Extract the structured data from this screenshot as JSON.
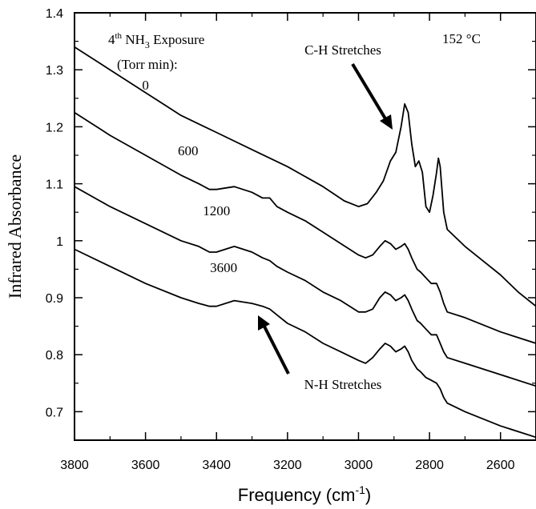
{
  "chart_data": {
    "type": "line",
    "xlabel": "Frequency (cm",
    "xlabel_sup": "-1",
    "xlabel_tail": ")",
    "ylabel": "Infrared Absorbance",
    "xlim": [
      3800,
      2500
    ],
    "ylim": [
      0.65,
      1.4
    ],
    "x_ticks": [
      3800,
      3600,
      3400,
      3200,
      3000,
      2800,
      2600
    ],
    "x_tick_labels": [
      "3800",
      "3600",
      "3400",
      "3200",
      "3000",
      "2800",
      "2600"
    ],
    "y_ticks": [
      0.7,
      0.8,
      0.9,
      1.0,
      1.1,
      1.2,
      1.3,
      1.4
    ],
    "y_tick_labels": [
      "0.7",
      "0.8",
      "0.9",
      "1",
      "1.1",
      "1.2",
      "1.3",
      "1.4"
    ],
    "legend_header": {
      "line1_pre": "4",
      "line1_sup": "th",
      "line1_mid": " NH",
      "line1_sub": "3",
      "line1_post": " Exposure",
      "line2": "(Torr min):"
    },
    "temperature_label": "152 °C",
    "annotations": [
      {
        "text": "C-H Stretches"
      },
      {
        "text": "N-H Stretches"
      }
    ],
    "series": [
      {
        "name": "0",
        "points": [
          [
            3800,
            1.34
          ],
          [
            3700,
            1.3
          ],
          [
            3600,
            1.26
          ],
          [
            3500,
            1.22
          ],
          [
            3400,
            1.19
          ],
          [
            3300,
            1.16
          ],
          [
            3200,
            1.13
          ],
          [
            3100,
            1.095
          ],
          [
            3040,
            1.07
          ],
          [
            3000,
            1.06
          ],
          [
            2975,
            1.065
          ],
          [
            2950,
            1.085
          ],
          [
            2930,
            1.105
          ],
          [
            2910,
            1.14
          ],
          [
            2895,
            1.155
          ],
          [
            2880,
            1.2
          ],
          [
            2870,
            1.24
          ],
          [
            2860,
            1.225
          ],
          [
            2850,
            1.17
          ],
          [
            2840,
            1.13
          ],
          [
            2830,
            1.14
          ],
          [
            2820,
            1.12
          ],
          [
            2810,
            1.06
          ],
          [
            2800,
            1.05
          ],
          [
            2790,
            1.08
          ],
          [
            2780,
            1.12
          ],
          [
            2775,
            1.145
          ],
          [
            2770,
            1.13
          ],
          [
            2760,
            1.05
          ],
          [
            2750,
            1.02
          ],
          [
            2700,
            0.99
          ],
          [
            2650,
            0.965
          ],
          [
            2600,
            0.94
          ],
          [
            2550,
            0.91
          ],
          [
            2500,
            0.885
          ]
        ]
      },
      {
        "name": "600",
        "points": [
          [
            3800,
            1.225
          ],
          [
            3700,
            1.185
          ],
          [
            3600,
            1.15
          ],
          [
            3500,
            1.115
          ],
          [
            3450,
            1.1
          ],
          [
            3420,
            1.09
          ],
          [
            3400,
            1.09
          ],
          [
            3350,
            1.095
          ],
          [
            3300,
            1.085
          ],
          [
            3270,
            1.075
          ],
          [
            3250,
            1.075
          ],
          [
            3230,
            1.06
          ],
          [
            3200,
            1.05
          ],
          [
            3150,
            1.035
          ],
          [
            3100,
            1.015
          ],
          [
            3050,
            0.995
          ],
          [
            3000,
            0.975
          ],
          [
            2980,
            0.97
          ],
          [
            2960,
            0.975
          ],
          [
            2940,
            0.99
          ],
          [
            2925,
            1.0
          ],
          [
            2910,
            0.995
          ],
          [
            2895,
            0.985
          ],
          [
            2880,
            0.99
          ],
          [
            2870,
            0.995
          ],
          [
            2860,
            0.985
          ],
          [
            2850,
            0.97
          ],
          [
            2835,
            0.95
          ],
          [
            2825,
            0.945
          ],
          [
            2810,
            0.935
          ],
          [
            2795,
            0.925
          ],
          [
            2780,
            0.925
          ],
          [
            2770,
            0.91
          ],
          [
            2760,
            0.89
          ],
          [
            2750,
            0.875
          ],
          [
            2700,
            0.865
          ],
          [
            2600,
            0.84
          ],
          [
            2500,
            0.82
          ]
        ]
      },
      {
        "name": "1200",
        "points": [
          [
            3800,
            1.095
          ],
          [
            3700,
            1.06
          ],
          [
            3600,
            1.03
          ],
          [
            3500,
            1.0
          ],
          [
            3450,
            0.99
          ],
          [
            3420,
            0.98
          ],
          [
            3400,
            0.98
          ],
          [
            3350,
            0.99
          ],
          [
            3300,
            0.98
          ],
          [
            3270,
            0.97
          ],
          [
            3250,
            0.965
          ],
          [
            3230,
            0.955
          ],
          [
            3200,
            0.945
          ],
          [
            3150,
            0.93
          ],
          [
            3100,
            0.91
          ],
          [
            3050,
            0.895
          ],
          [
            3000,
            0.875
          ],
          [
            2980,
            0.875
          ],
          [
            2960,
            0.88
          ],
          [
            2940,
            0.9
          ],
          [
            2925,
            0.91
          ],
          [
            2910,
            0.905
          ],
          [
            2895,
            0.895
          ],
          [
            2880,
            0.9
          ],
          [
            2870,
            0.905
          ],
          [
            2860,
            0.895
          ],
          [
            2850,
            0.88
          ],
          [
            2835,
            0.86
          ],
          [
            2825,
            0.855
          ],
          [
            2810,
            0.845
          ],
          [
            2795,
            0.835
          ],
          [
            2780,
            0.835
          ],
          [
            2770,
            0.82
          ],
          [
            2760,
            0.805
          ],
          [
            2750,
            0.795
          ],
          [
            2700,
            0.785
          ],
          [
            2600,
            0.765
          ],
          [
            2500,
            0.745
          ]
        ]
      },
      {
        "name": "3600",
        "points": [
          [
            3800,
            0.985
          ],
          [
            3700,
            0.955
          ],
          [
            3600,
            0.925
          ],
          [
            3500,
            0.9
          ],
          [
            3450,
            0.89
          ],
          [
            3420,
            0.885
          ],
          [
            3400,
            0.885
          ],
          [
            3350,
            0.895
          ],
          [
            3300,
            0.89
          ],
          [
            3270,
            0.885
          ],
          [
            3250,
            0.88
          ],
          [
            3230,
            0.87
          ],
          [
            3200,
            0.855
          ],
          [
            3150,
            0.84
          ],
          [
            3100,
            0.82
          ],
          [
            3050,
            0.805
          ],
          [
            3000,
            0.79
          ],
          [
            2980,
            0.785
          ],
          [
            2960,
            0.795
          ],
          [
            2940,
            0.81
          ],
          [
            2925,
            0.82
          ],
          [
            2910,
            0.815
          ],
          [
            2895,
            0.805
          ],
          [
            2880,
            0.81
          ],
          [
            2870,
            0.815
          ],
          [
            2860,
            0.805
          ],
          [
            2850,
            0.79
          ],
          [
            2835,
            0.775
          ],
          [
            2825,
            0.77
          ],
          [
            2810,
            0.76
          ],
          [
            2795,
            0.755
          ],
          [
            2780,
            0.75
          ],
          [
            2770,
            0.74
          ],
          [
            2760,
            0.725
          ],
          [
            2750,
            0.715
          ],
          [
            2700,
            0.7
          ],
          [
            2600,
            0.675
          ],
          [
            2500,
            0.655
          ]
        ]
      }
    ]
  }
}
